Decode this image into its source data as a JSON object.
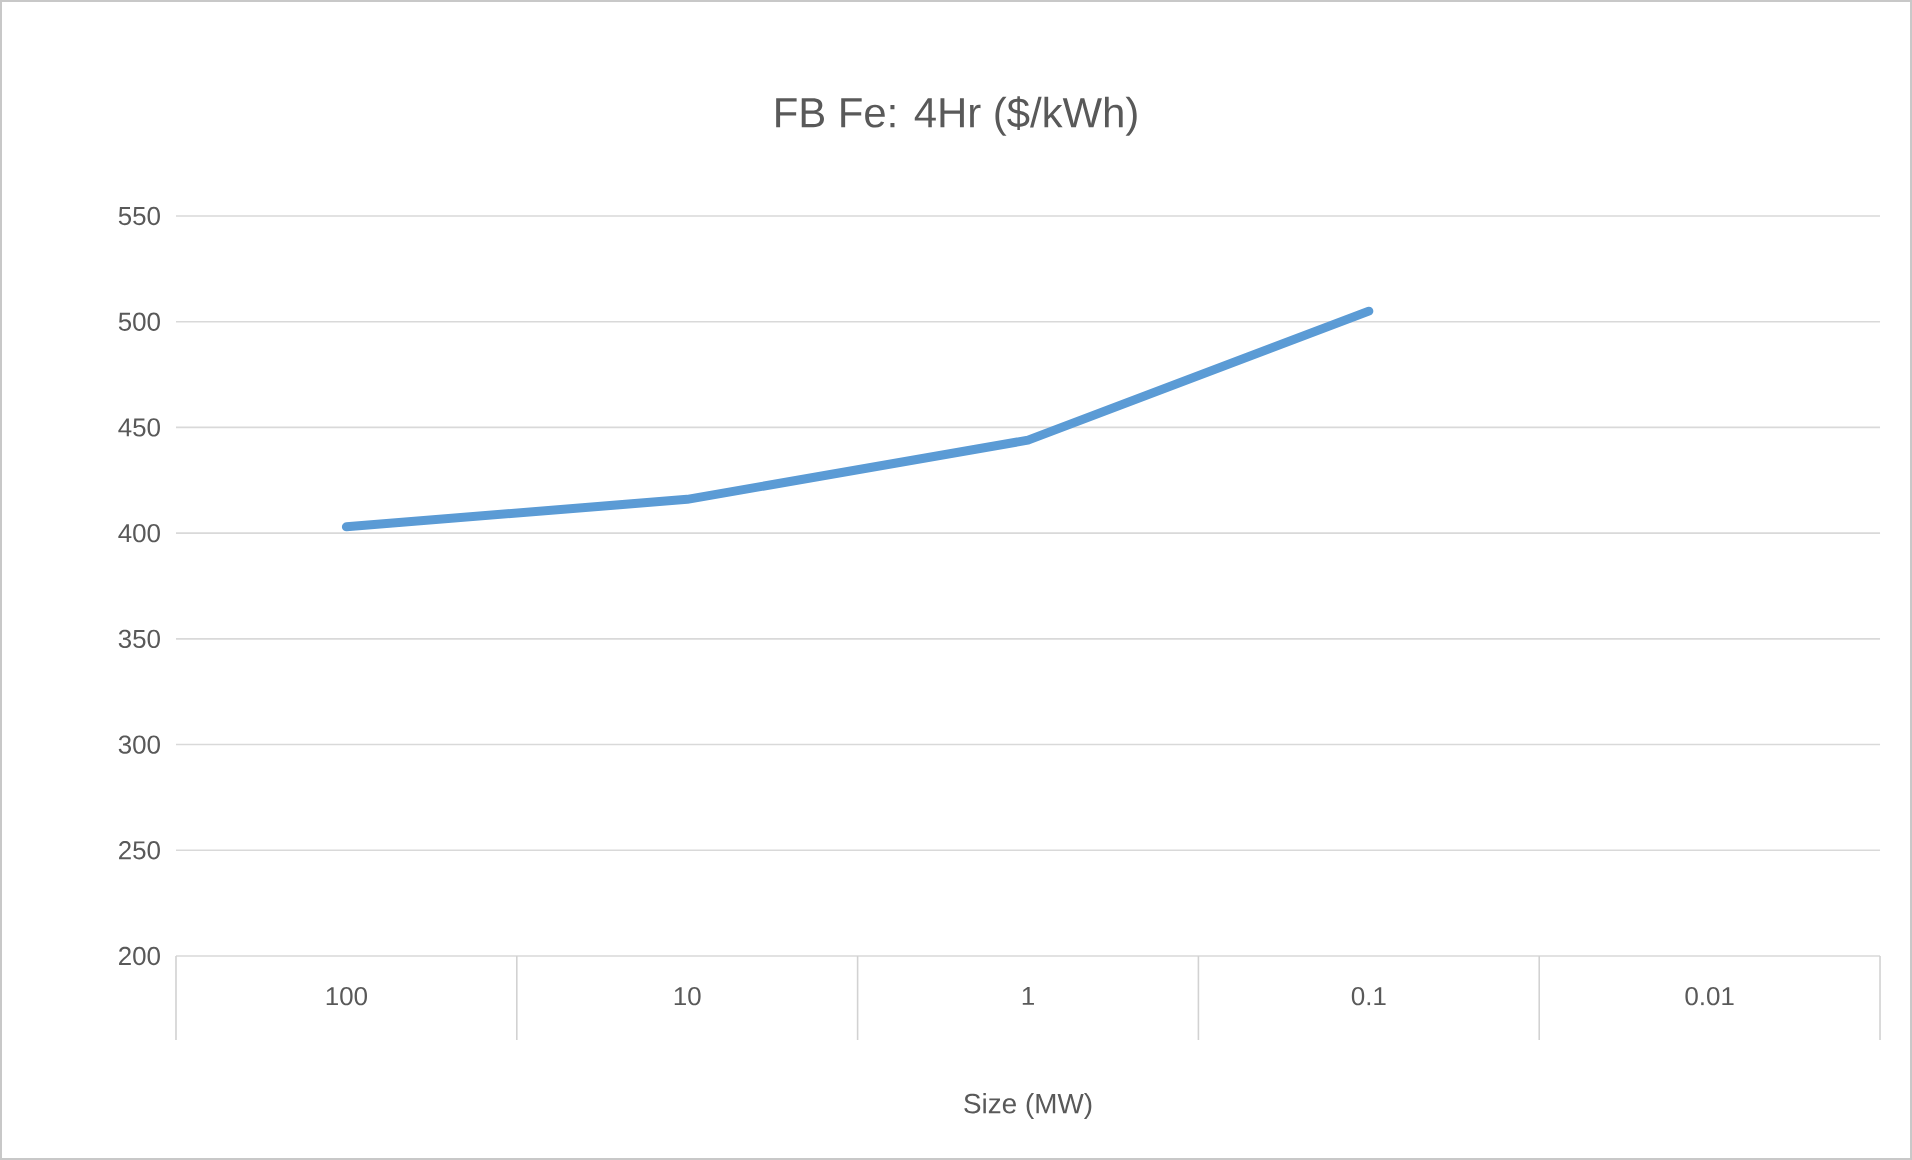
{
  "chart_data": {
    "type": "line",
    "title": "FB Fe: 4Hr ($/kWh)",
    "xlabel": "Size (MW)",
    "categories": [
      "100",
      "10",
      "1",
      "0.1",
      "0.01"
    ],
    "values": [
      403,
      416,
      444,
      505,
      null
    ],
    "color": "#5b9bd5",
    "ylim": [
      200,
      550
    ],
    "yticks": [
      200,
      250,
      300,
      350,
      400,
      450,
      500,
      550
    ],
    "grid": "y"
  }
}
